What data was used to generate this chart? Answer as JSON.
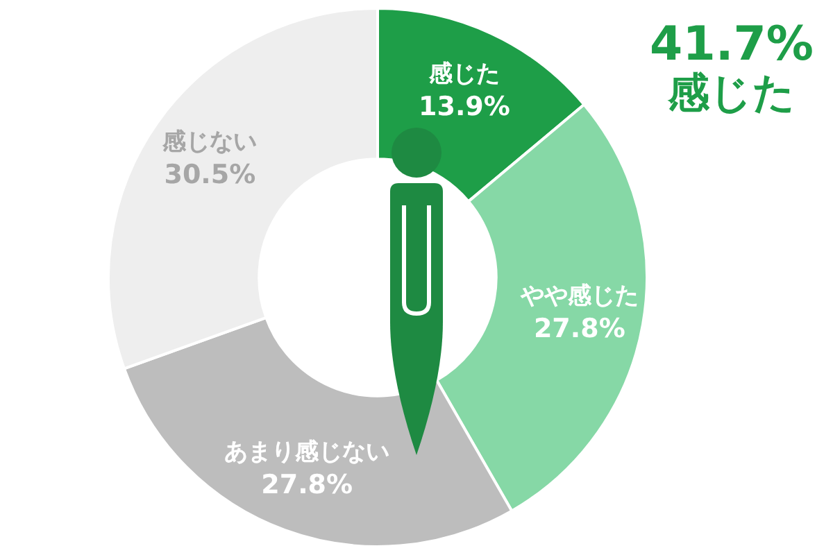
{
  "chart_data": {
    "type": "donut",
    "categories": [
      "感じた",
      "やや感じた",
      "あまり感じない",
      "感じない"
    ],
    "values": [
      13.9,
      27.8,
      27.8,
      30.5
    ],
    "value_labels": [
      "13.9%",
      "27.8%",
      "27.8%",
      "30.5%"
    ],
    "colors": [
      "#1e9e48",
      "#86d8a6",
      "#bdbdbd",
      "#eeeeee"
    ],
    "annotations": [
      "41.7%",
      "感じた"
    ],
    "legend": false
  }
}
